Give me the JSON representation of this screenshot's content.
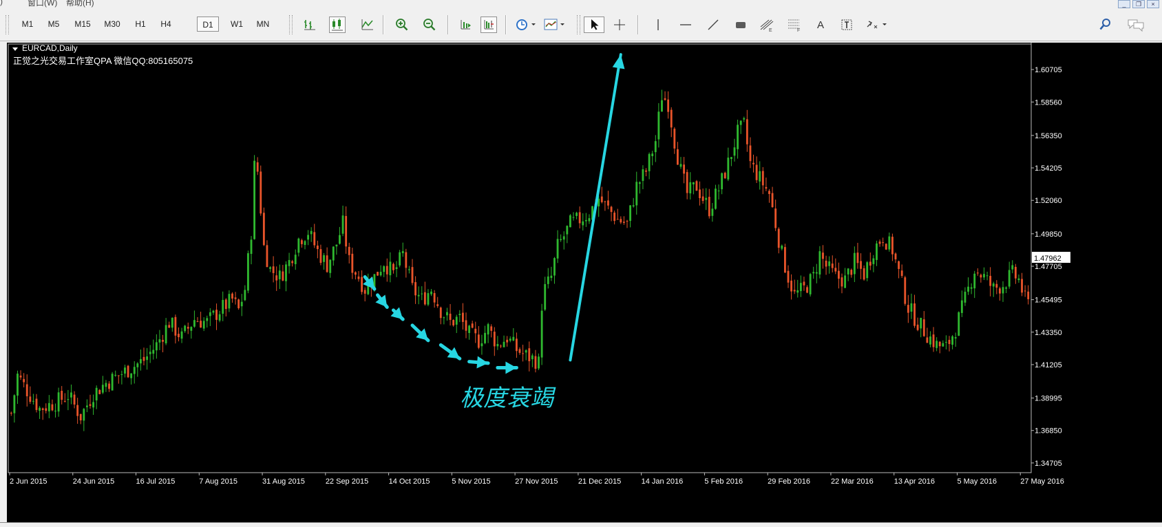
{
  "menubar": {
    "items": [
      "窗口(W)",
      "帮助(H)"
    ]
  },
  "toolbar": {
    "timeframes": [
      "M1",
      "M5",
      "M15",
      "M30",
      "H1",
      "H4",
      "D1",
      "W1",
      "MN"
    ],
    "active_timeframe": "D1",
    "buttons": {
      "bar_chart": "bar-chart-icon",
      "candle_chart": "candlestick-chart-icon",
      "line_chart": "line-chart-icon",
      "zoom_in": "zoom-in-icon",
      "zoom_out": "zoom-out-icon",
      "auto_scroll": "auto-scroll-icon",
      "chart_shift": "chart-shift-icon",
      "periods": "clock-icon",
      "templates": "template-icon",
      "cursor": "cursor-arrow-icon",
      "crosshair": "crosshair-icon",
      "vline": "vertical-line-icon",
      "hline": "horizontal-line-icon",
      "trendline": "trend-line-icon",
      "channel": "channel-icon",
      "fibo": "fibonacci-icon",
      "fibo2": "fibonacci-fan-icon",
      "text": "text-icon",
      "text_label": "text-label-icon",
      "arrows": "arrows-icon",
      "search": "search-icon",
      "chat": "chat-icon"
    },
    "text_tool_glyph": "A"
  },
  "chart": {
    "symbol": "EURCAD,Daily",
    "watermark": "正觉之光交易工作室QPA 微信QQ:805165075",
    "annotation": "极度衰竭",
    "current_price": "1.47962",
    "colors": {
      "background": "#000000",
      "bull": "#2fb82f",
      "bear": "#e8542a",
      "axis_text": "#ffffff",
      "annotation": "#27d6e2"
    }
  },
  "chart_data": {
    "type": "candlestick",
    "symbol": "EURCAD",
    "period": "Daily",
    "ylim": [
      1.342,
      1.623
    ],
    "y_ticks": [
      "1.60705",
      "1.58560",
      "1.56350",
      "1.54205",
      "1.52060",
      "1.49850",
      "1.47705",
      "1.45495",
      "1.43350",
      "1.41205",
      "1.38995",
      "1.36850",
      "1.34705"
    ],
    "x_ticks": [
      "2 Jun 2015",
      "24 Jun 2015",
      "16 Jul 2015",
      "7 Aug 2015",
      "31 Aug 2015",
      "22 Sep 2015",
      "14 Oct 2015",
      "5 Nov 2015",
      "27 Nov 2015",
      "21 Dec 2015",
      "14 Jan 2016",
      "5 Feb 2016",
      "29 Feb 2016",
      "22 Mar 2016",
      "13 Apr 2016",
      "5 May 2016",
      "27 May 2016"
    ],
    "close_path": [
      [
        0,
        1.38
      ],
      [
        2,
        1.405
      ],
      [
        5,
        1.395
      ],
      [
        9,
        1.383
      ],
      [
        14,
        1.387
      ],
      [
        18,
        1.392
      ],
      [
        22,
        1.378
      ],
      [
        26,
        1.393
      ],
      [
        30,
        1.4
      ],
      [
        34,
        1.405
      ],
      [
        38,
        1.41
      ],
      [
        42,
        1.415
      ],
      [
        46,
        1.425
      ],
      [
        50,
        1.44
      ],
      [
        54,
        1.43
      ],
      [
        58,
        1.442
      ],
      [
        62,
        1.44
      ],
      [
        66,
        1.448
      ],
      [
        70,
        1.455
      ],
      [
        72,
        1.448
      ],
      [
        74,
        1.462
      ],
      [
        76,
        1.5
      ],
      [
        77,
        1.543
      ],
      [
        78,
        1.54
      ],
      [
        79,
        1.515
      ],
      [
        80,
        1.49
      ],
      [
        82,
        1.475
      ],
      [
        85,
        1.47
      ],
      [
        88,
        1.48
      ],
      [
        91,
        1.495
      ],
      [
        94,
        1.5
      ],
      [
        97,
        1.487
      ],
      [
        100,
        1.478
      ],
      [
        103,
        1.492
      ],
      [
        105,
        1.505
      ],
      [
        107,
        1.48
      ],
      [
        110,
        1.47
      ],
      [
        112,
        1.462
      ],
      [
        115,
        1.47
      ],
      [
        118,
        1.48
      ],
      [
        121,
        1.472
      ],
      [
        124,
        1.485
      ],
      [
        127,
        1.462
      ],
      [
        130,
        1.455
      ],
      [
        133,
        1.462
      ],
      [
        136,
        1.448
      ],
      [
        139,
        1.44
      ],
      [
        142,
        1.443
      ],
      [
        145,
        1.432
      ],
      [
        148,
        1.428
      ],
      [
        151,
        1.436
      ],
      [
        154,
        1.425
      ],
      [
        157,
        1.43
      ],
      [
        160,
        1.422
      ],
      [
        163,
        1.418
      ],
      [
        166,
        1.415
      ],
      [
        167,
        1.413
      ],
      [
        168,
        1.452
      ],
      [
        169,
        1.462
      ],
      [
        171,
        1.47
      ],
      [
        173,
        1.49
      ],
      [
        175,
        1.497
      ],
      [
        177,
        1.505
      ],
      [
        180,
        1.508
      ],
      [
        183,
        1.512
      ],
      [
        186,
        1.522
      ],
      [
        189,
        1.515
      ],
      [
        192,
        1.508
      ],
      [
        195,
        1.505
      ],
      [
        198,
        1.53
      ],
      [
        201,
        1.54
      ],
      [
        204,
        1.56
      ],
      [
        206,
        1.59
      ],
      [
        208,
        1.585
      ],
      [
        210,
        1.56
      ],
      [
        212,
        1.54
      ],
      [
        214,
        1.525
      ],
      [
        217,
        1.53
      ],
      [
        219,
        1.522
      ],
      [
        221,
        1.515
      ],
      [
        224,
        1.528
      ],
      [
        227,
        1.545
      ],
      [
        230,
        1.565
      ],
      [
        232,
        1.57
      ],
      [
        234,
        1.545
      ],
      [
        237,
        1.535
      ],
      [
        240,
        1.525
      ],
      [
        242,
        1.505
      ],
      [
        244,
        1.485
      ],
      [
        246,
        1.47
      ],
      [
        248,
        1.458
      ],
      [
        251,
        1.462
      ],
      [
        254,
        1.47
      ],
      [
        256,
        1.485
      ],
      [
        258,
        1.477
      ],
      [
        261,
        1.47
      ],
      [
        264,
        1.468
      ],
      [
        267,
        1.48
      ],
      [
        270,
        1.472
      ],
      [
        273,
        1.488
      ],
      [
        276,
        1.497
      ],
      [
        279,
        1.488
      ],
      [
        282,
        1.465
      ],
      [
        284,
        1.45
      ],
      [
        287,
        1.44
      ],
      [
        290,
        1.432
      ],
      [
        293,
        1.425
      ],
      [
        296,
        1.423
      ],
      [
        299,
        1.436
      ],
      [
        302,
        1.455
      ],
      [
        305,
        1.475
      ],
      [
        308,
        1.47
      ],
      [
        311,
        1.462
      ],
      [
        314,
        1.465
      ],
      [
        317,
        1.472
      ],
      [
        319,
        1.468
      ],
      [
        321,
        1.455
      ],
      [
        322,
        1.452
      ]
    ],
    "annotation_arrows": [
      [
        112,
        1.47,
        115,
        1.462
      ],
      [
        116,
        1.458,
        119,
        1.45
      ],
      [
        121,
        1.448,
        124,
        1.442
      ],
      [
        127,
        1.438,
        132,
        1.428
      ],
      [
        136,
        1.425,
        142,
        1.416
      ],
      [
        145,
        1.414,
        151,
        1.413
      ],
      [
        154,
        1.41,
        160,
        1.41
      ],
      [
        177,
        1.415,
        193,
        1.617
      ]
    ],
    "annotation_text": "极度衰竭"
  }
}
